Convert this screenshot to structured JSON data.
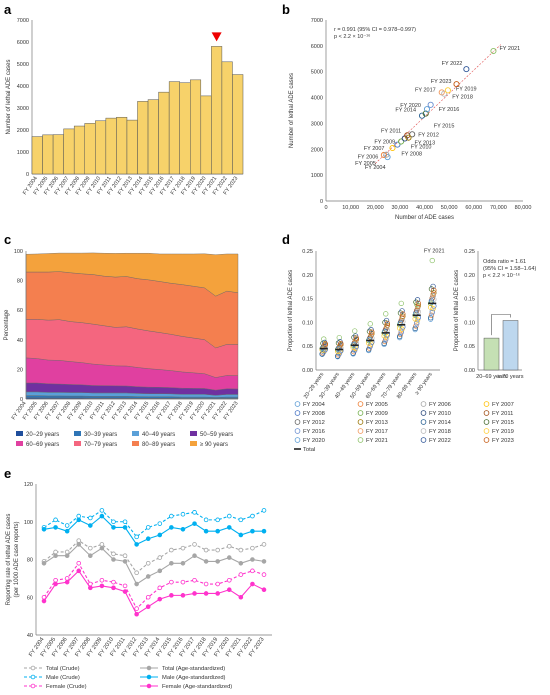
{
  "panels": {
    "a": "a",
    "b": "b",
    "c": "c",
    "d": "d",
    "e": "e"
  },
  "chart_data": [
    {
      "id": "a",
      "type": "bar",
      "ylabel": "Number of lethal ADE cases",
      "categories": [
        "FY 2004",
        "FY 2005",
        "FY 2006",
        "FY 2007",
        "FY 2008",
        "FY 2009",
        "FY 2010",
        "FY 2011",
        "FY 2012",
        "FY 2013",
        "FY 2014",
        "FY 2015",
        "FY 2016",
        "FY 2017",
        "FY 2018",
        "FY 2019",
        "FY 2020",
        "FY 2021",
        "FY 2022",
        "FY 2023"
      ],
      "values": [
        1700,
        1780,
        1790,
        2050,
        2180,
        2300,
        2420,
        2540,
        2580,
        2450,
        3300,
        3380,
        3720,
        4200,
        4150,
        4280,
        3550,
        5800,
        5100,
        4520
      ],
      "ylim": [
        0,
        7000
      ],
      "yticks": [
        0,
        1000,
        2000,
        3000,
        4000,
        5000,
        6000,
        7000
      ],
      "marker_category": "FY 2021",
      "bar_color": "#F7D26A"
    },
    {
      "id": "b",
      "type": "scatter",
      "xlabel": "Number of ADE cases",
      "ylabel": "Number of lethal ADE cases",
      "xlim": [
        0,
        80000
      ],
      "ylim": [
        0,
        7000
      ],
      "xticks": [
        "0",
        "10,000",
        "20,000",
        "30,000",
        "40,000",
        "50,000",
        "60,000",
        "70,000",
        "80,000"
      ],
      "yticks": [
        0,
        1000,
        2000,
        3000,
        4000,
        5000,
        6000,
        7000
      ],
      "annotation": [
        "r = 0.991 (95% CI = 0.978–0.997)",
        "p < 2.2 × 10⁻¹⁶"
      ],
      "points": [
        {
          "label": "FY 2004",
          "x": 25000,
          "y": 1700,
          "color": "#5b9bd5"
        },
        {
          "label": "FY 2005",
          "x": 23500,
          "y": 1780,
          "color": "#ed7d31"
        },
        {
          "label": "FY 2006",
          "x": 24500,
          "y": 1790,
          "color": "#a5a5a5"
        },
        {
          "label": "FY 2007",
          "x": 27000,
          "y": 2050,
          "color": "#ffc000"
        },
        {
          "label": "FY 2008",
          "x": 29000,
          "y": 2180,
          "color": "#4472c4"
        },
        {
          "label": "FY 2009",
          "x": 30500,
          "y": 2300,
          "color": "#70ad47"
        },
        {
          "label": "FY 2010",
          "x": 32000,
          "y": 2420,
          "color": "#264478"
        },
        {
          "label": "FY 2011",
          "x": 33000,
          "y": 2540,
          "color": "#9e480e"
        },
        {
          "label": "FY 2012",
          "x": 35000,
          "y": 2580,
          "color": "#636363"
        },
        {
          "label": "FY 2013",
          "x": 33500,
          "y": 2450,
          "color": "#997300"
        },
        {
          "label": "FY 2014",
          "x": 39000,
          "y": 3300,
          "color": "#255e91"
        },
        {
          "label": "FY 2015",
          "x": 40500,
          "y": 3380,
          "color": "#43682b"
        },
        {
          "label": "FY 2016",
          "x": 42500,
          "y": 3720,
          "color": "#698ed0"
        },
        {
          "label": "FY 2017",
          "x": 47000,
          "y": 4200,
          "color": "#f1975a"
        },
        {
          "label": "FY 2018",
          "x": 48000,
          "y": 4150,
          "color": "#b7b7b7"
        },
        {
          "label": "FY 2019",
          "x": 49500,
          "y": 4280,
          "color": "#ffcd33"
        },
        {
          "label": "FY 2020",
          "x": 41000,
          "y": 3550,
          "color": "#5b9bd5"
        },
        {
          "label": "FY 2021",
          "x": 68000,
          "y": 5800,
          "color": "#8cc168"
        },
        {
          "label": "FY 2022",
          "x": 57000,
          "y": 5100,
          "color": "#2f5597"
        },
        {
          "label": "FY 2023",
          "x": 53000,
          "y": 4520,
          "color": "#c55a11"
        }
      ]
    },
    {
      "id": "c",
      "type": "area",
      "ylabel": "Percentage",
      "ylim": [
        0,
        100
      ],
      "yticks": [
        0,
        20,
        40,
        60,
        80,
        100
      ],
      "categories": [
        "FY 2004",
        "FY 2005",
        "FY 2006",
        "FY 2007",
        "FY 2008",
        "FY 2009",
        "FY 2010",
        "FY 2011",
        "FY 2012",
        "FY 2013",
        "FY 2014",
        "FY 2015",
        "FY 2016",
        "FY 2017",
        "FY 2018",
        "FY 2019",
        "FY 2020",
        "FY 2021",
        "FY 2022",
        "FY 2023"
      ],
      "series": [
        {
          "name": "20−29 years",
          "color": "#1f4e9c",
          "values": [
            0.8,
            0.8,
            0.7,
            0.7,
            0.7,
            0.7,
            0.6,
            0.6,
            0.6,
            0.6,
            0.5,
            0.5,
            0.5,
            0.5,
            0.4,
            0.4,
            0.4,
            0.3,
            0.4,
            0.4
          ]
        },
        {
          "name": "30−39 years",
          "color": "#2e75b6",
          "values": [
            1.5,
            1.5,
            1.4,
            1.4,
            1.3,
            1.3,
            1.2,
            1.2,
            1.2,
            1.2,
            1.1,
            1.0,
            1.0,
            1.0,
            0.9,
            0.9,
            0.9,
            0.7,
            0.9,
            0.9
          ]
        },
        {
          "name": "40−49 years",
          "color": "#5aa0d8",
          "values": [
            2.5,
            2.5,
            2.4,
            2.4,
            2.4,
            2.4,
            2.3,
            2.3,
            2.3,
            2.3,
            2.2,
            2.1,
            2.1,
            2.0,
            1.9,
            1.9,
            1.9,
            1.5,
            1.8,
            1.8
          ]
        },
        {
          "name": "50−59 years",
          "color": "#7030a0",
          "values": [
            6,
            6,
            5.8,
            5.6,
            5.4,
            5.2,
            5,
            4.9,
            4.8,
            4.7,
            4.5,
            4.4,
            4.3,
            4.2,
            4.1,
            4,
            3.9,
            3.5,
            3.8,
            3.7
          ]
        },
        {
          "name": "60−69 years",
          "color": "#e040a0",
          "values": [
            17,
            16.5,
            16,
            16,
            15.5,
            15,
            14.5,
            14,
            13.5,
            13.5,
            13,
            12.5,
            12,
            11.5,
            11,
            10.5,
            10,
            8.5,
            9,
            9
          ]
        },
        {
          "name": "70−79 years",
          "color": "#f4667f",
          "values": [
            26,
            26.5,
            27,
            27.5,
            27,
            27,
            27,
            26.5,
            26,
            26.5,
            26,
            25.5,
            25,
            24.5,
            24,
            23.5,
            23,
            20,
            21,
            21
          ]
        },
        {
          "name": "80−89 years",
          "color": "#f47f4f",
          "values": [
            32,
            32,
            32.5,
            32.5,
            33,
            33,
            33.5,
            33.5,
            34,
            34,
            34,
            34.5,
            34.5,
            34.5,
            35,
            35,
            35,
            35,
            36,
            35
          ]
        },
        {
          "name": "≥ 90 years",
          "color": "#f4a23c",
          "values": [
            12,
            12.2,
            12.5,
            12.5,
            13.3,
            14,
            14.6,
            15.5,
            16,
            15.7,
            17.2,
            18,
            18.6,
            19.8,
            20.7,
            21.8,
            23,
            28,
            25.1,
            26.2
          ]
        }
      ]
    },
    {
      "id": "d",
      "type": "scatter",
      "ylabel": "Proportion of lethal ADE cases",
      "ylim": [
        0,
        0.25
      ],
      "yticks": [
        "0.00",
        "0.05",
        "0.10",
        "0.15",
        "0.20",
        "0.25"
      ],
      "categories": [
        "20−29 years",
        "30−39 years",
        "40−49 years",
        "50−59 years",
        "60−69 years",
        "70−79 years",
        "80−89 years",
        "≥ 90 years"
      ],
      "total": [
        0.045,
        0.043,
        0.052,
        0.062,
        0.078,
        0.095,
        0.115,
        0.14
      ],
      "annotation": "FY 2021",
      "legend": [
        "FY 2004",
        "FY 2005",
        "FY 2006",
        "FY 2007",
        "FY 2008",
        "FY 2009",
        "FY 2010",
        "FY 2011",
        "FY 2012",
        "FY 2013",
        "FY 2014",
        "FY 2015",
        "FY 2016",
        "FY 2017",
        "FY 2018",
        "FY 2019",
        "FY 2020",
        "FY 2021",
        "FY 2022",
        "FY 2023",
        "Total"
      ],
      "legend_colors": [
        "#5b9bd5",
        "#ed7d31",
        "#a5a5a5",
        "#ffc000",
        "#4472c4",
        "#70ad47",
        "#264478",
        "#9e480e",
        "#636363",
        "#997300",
        "#255e91",
        "#43682b",
        "#698ed0",
        "#f1975a",
        "#b7b7b7",
        "#ffcd33",
        "#5b9bd5",
        "#8cc168",
        "#2f5597",
        "#c55a11",
        "#222222"
      ]
    },
    {
      "id": "d2",
      "type": "bar",
      "ylabel": "Proportion of lethal ADE cases",
      "ylim": [
        0,
        0.25
      ],
      "yticks": [
        "0.00",
        "0.05",
        "0.10",
        "0.15",
        "0.20",
        "0.25"
      ],
      "categories": [
        "20–69 years",
        "≥ 70 years"
      ],
      "values": [
        0.067,
        0.104
      ],
      "colors": [
        "#c5e0b4",
        "#bdd7ee"
      ],
      "annotation": [
        "Odds ratio = 1.61",
        "(95% CI = 1.58–1.64)",
        "p < 2.2 × 10⁻¹⁶"
      ]
    },
    {
      "id": "e",
      "type": "line",
      "ylabel": "Reporting rate of lethal ADE cases",
      "ylabel2": "(per 1000 ADE case reports)",
      "ylim": [
        40,
        120
      ],
      "yticks": [
        40,
        60,
        80,
        100,
        120
      ],
      "categories": [
        "FY 2004",
        "FY 2005",
        "FY 2006",
        "FY 2007",
        "FY 2008",
        "FY 2009",
        "FY 2010",
        "FY 2011",
        "FY 2012",
        "FY 2013",
        "FY 2014",
        "FY 2015",
        "FY 2016",
        "FY 2017",
        "FY 2018",
        "FY 2019",
        "FY 2020",
        "FY 2021",
        "FY 2022",
        "FY 2023"
      ],
      "series": [
        {
          "name": "Total (Crude)",
          "color": "#a6a6a6",
          "dash": true,
          "hollow": true,
          "values": [
            79,
            84,
            84,
            90,
            86,
            88,
            83,
            82,
            73,
            78,
            81,
            85,
            86,
            88,
            85,
            85,
            87,
            85,
            86,
            88
          ]
        },
        {
          "name": "Total (Age-standardized)",
          "color": "#a6a6a6",
          "dash": false,
          "hollow": false,
          "values": [
            78,
            82,
            82,
            88,
            82,
            86,
            80,
            79,
            67,
            71,
            74,
            78,
            78,
            82,
            79,
            79,
            81,
            78,
            80,
            79
          ]
        },
        {
          "name": "Male (Crude)",
          "color": "#00b0f0",
          "dash": true,
          "hollow": true,
          "values": [
            97,
            101,
            98,
            103,
            102,
            106,
            100,
            100,
            92,
            97,
            99,
            103,
            104,
            105,
            101,
            101,
            103,
            101,
            103,
            106
          ]
        },
        {
          "name": "Male (Age-standardized)",
          "color": "#00b0f0",
          "dash": false,
          "hollow": false,
          "values": [
            96,
            97,
            95,
            101,
            98,
            103,
            97,
            97,
            88,
            91,
            93,
            97,
            96,
            99,
            95,
            95,
            97,
            93,
            95,
            95
          ]
        },
        {
          "name": "Female (Crude)",
          "color": "#ff33cc",
          "dash": true,
          "hollow": true,
          "values": [
            60,
            69,
            70,
            78,
            67,
            69,
            68,
            66,
            54,
            60,
            65,
            68,
            68,
            69,
            67,
            67,
            69,
            72,
            74,
            72
          ]
        },
        {
          "name": "Female (Age-standardized)",
          "color": "#ff33cc",
          "dash": false,
          "hollow": false,
          "values": [
            58,
            67,
            68,
            74,
            65,
            66,
            65,
            63,
            51,
            55,
            59,
            61,
            61,
            62,
            62,
            62,
            64,
            60,
            67,
            64
          ]
        }
      ]
    }
  ]
}
